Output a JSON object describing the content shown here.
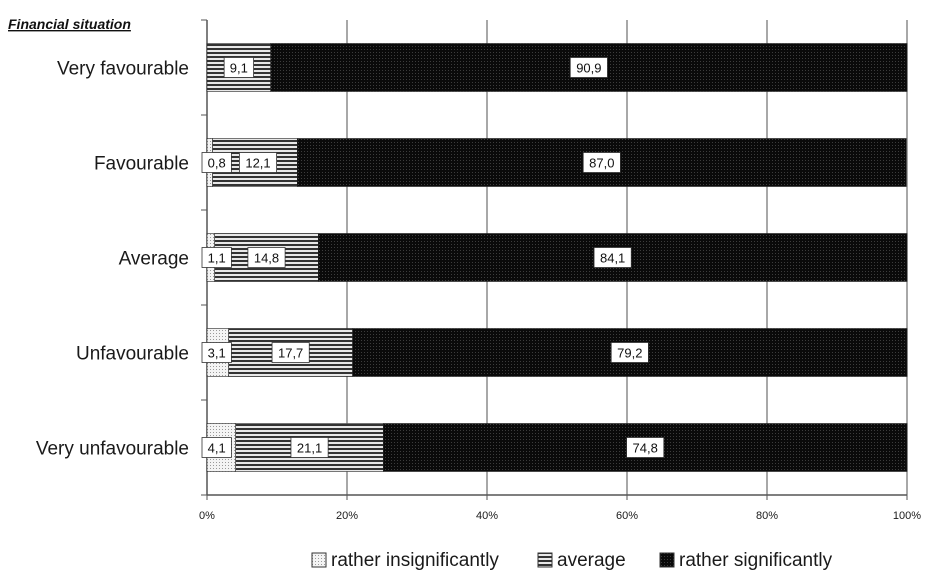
{
  "chart_data": {
    "type": "bar",
    "orientation": "horizontal",
    "stacked": "percent",
    "axis_title": "Financial situation",
    "categories": [
      "Very favourable",
      "Favourable",
      "Average",
      "Unfavourable",
      "Very unfavourable"
    ],
    "series": [
      {
        "name": "rather insignificantly",
        "values": [
          0.0,
          0.8,
          1.1,
          3.1,
          4.1
        ],
        "labels": [
          "",
          "0,8",
          "1,1",
          "3,1",
          "4,1"
        ],
        "color": "#f2f2f2",
        "pattern": "light-dots"
      },
      {
        "name": "average",
        "values": [
          9.1,
          12.1,
          14.8,
          17.7,
          21.1
        ],
        "labels": [
          "9,1",
          "12,1",
          "14,8",
          "17,7",
          "21,1"
        ],
        "color": "#555555",
        "pattern": "horizontal-stripes"
      },
      {
        "name": "rather significantly",
        "values": [
          90.9,
          87.0,
          84.1,
          79.2,
          74.8
        ],
        "labels": [
          "90,9",
          "87,0",
          "84,1",
          "79,2",
          "74,8"
        ],
        "color": "#111111",
        "pattern": "dense-dots"
      }
    ],
    "x_ticks": [
      "0%",
      "20%",
      "40%",
      "60%",
      "80%",
      "100%"
    ],
    "xlim": [
      0,
      100
    ],
    "grid": true,
    "legend_position": "bottom"
  }
}
